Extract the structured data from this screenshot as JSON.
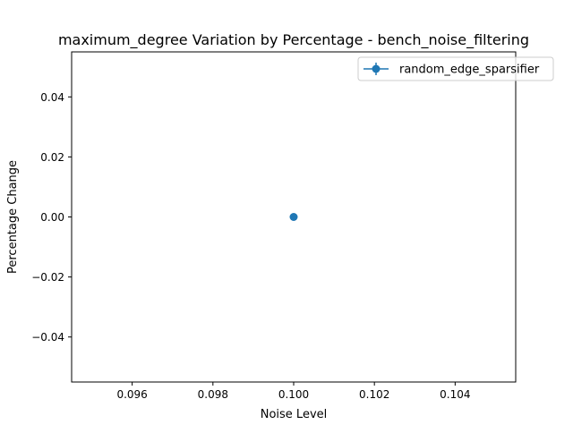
{
  "chart_data": {
    "type": "line",
    "title": "maximum_degree Variation by Percentage - bench_noise_filtering",
    "xlabel": "Noise Level",
    "ylabel": "Percentage Change",
    "xlim": [
      0.0945,
      0.1055
    ],
    "ylim": [
      -0.055,
      0.055
    ],
    "xticks": [
      0.096,
      0.098,
      0.1,
      0.102,
      0.104
    ],
    "xtick_labels": [
      "0.096",
      "0.098",
      "0.100",
      "0.102",
      "0.104"
    ],
    "yticks": [
      -0.04,
      -0.02,
      0.0,
      0.02,
      0.04
    ],
    "ytick_labels": [
      "−0.04",
      "−0.02",
      "0.00",
      "0.02",
      "0.04"
    ],
    "grid": false,
    "legend_position": "top-right",
    "series": [
      {
        "name": "random_edge_sparsifier",
        "color": "#1f77b4",
        "marker": "circle",
        "x": [
          0.1
        ],
        "y": [
          0.0
        ],
        "yerr": [
          0.0
        ]
      }
    ]
  }
}
